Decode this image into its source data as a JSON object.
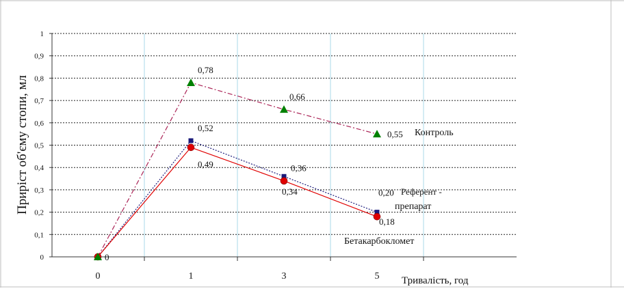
{
  "chart_data": {
    "type": "line",
    "categories": [
      "0",
      "1",
      "3",
      "5"
    ],
    "ylabel": "Приріст об'єму стопи, мл",
    "xlabel": "Тривалість, год",
    "ylim": [
      0,
      1
    ],
    "yticks": [
      "0",
      "0,1",
      "0,2",
      "0,3",
      "0,4",
      "0,5",
      "0,6",
      "0,7",
      "0,8",
      "0,9",
      "1"
    ],
    "grid": "horizontal-dotted",
    "series": [
      {
        "name": "Контроль",
        "values": [
          0,
          0.78,
          0.66,
          0.55
        ],
        "labels": [
          "",
          "0,78",
          "0,66",
          "0,55"
        ],
        "color": "#008000",
        "line_color": "#aa2255",
        "marker": "triangle",
        "line_style": "dash-dot"
      },
      {
        "name": "Референт - препарат",
        "values": [
          0,
          0.52,
          0.36,
          0.2
        ],
        "labels": [
          "0",
          "0,52",
          "0,36",
          "0,20"
        ],
        "color": "#1a1a7a",
        "line_color": "#1a1a7a",
        "marker": "square",
        "line_style": "dotted"
      },
      {
        "name": "Бетакарбокломет",
        "values": [
          0,
          0.49,
          0.34,
          0.18
        ],
        "labels": [
          "0",
          "0,49",
          "0,34",
          "0,18"
        ],
        "color": "#e00000",
        "line_color": "#e00000",
        "marker": "circle",
        "line_style": "solid"
      }
    ]
  }
}
